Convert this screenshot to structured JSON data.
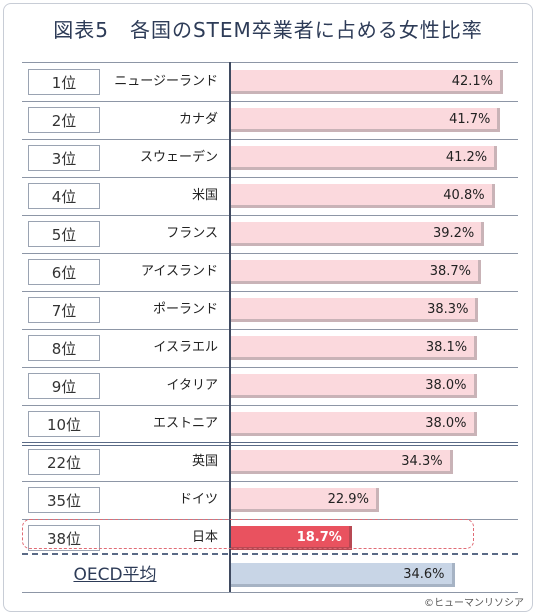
{
  "title": "図表5　各国のSTEM卒業者に占める女性比率",
  "credit": "©ヒューマンリソシア",
  "oecd_label": "OECD平均",
  "chart_data": {
    "type": "bar",
    "orientation": "horizontal",
    "title": "図表5　各国のSTEM卒業者に占める女性比率",
    "unit": "%",
    "xlim": [
      0,
      45
    ],
    "rows": [
      {
        "rank": "1位",
        "country": "ニュージーランド",
        "value": 42.1,
        "label": "42.1%"
      },
      {
        "rank": "2位",
        "country": "カナダ",
        "value": 41.7,
        "label": "41.7%"
      },
      {
        "rank": "3位",
        "country": "スウェーデン",
        "value": 41.2,
        "label": "41.2%"
      },
      {
        "rank": "4位",
        "country": "米国",
        "value": 40.8,
        "label": "40.8%"
      },
      {
        "rank": "5位",
        "country": "フランス",
        "value": 39.2,
        "label": "39.2%"
      },
      {
        "rank": "6位",
        "country": "アイスランド",
        "value": 38.7,
        "label": "38.7%"
      },
      {
        "rank": "7位",
        "country": "ポーランド",
        "value": 38.3,
        "label": "38.3%"
      },
      {
        "rank": "8位",
        "country": "イスラエル",
        "value": 38.1,
        "label": "38.1%"
      },
      {
        "rank": "9位",
        "country": "イタリア",
        "value": 38.0,
        "label": "38.0%"
      },
      {
        "rank": "10位",
        "country": "エストニア",
        "value": 38.0,
        "label": "38.0%"
      },
      {
        "rank": "22位",
        "country": "英国",
        "value": 34.3,
        "label": "34.3%"
      },
      {
        "rank": "35位",
        "country": "ドイツ",
        "value": 22.9,
        "label": "22.9%"
      },
      {
        "rank": "38位",
        "country": "日本",
        "value": 18.7,
        "label": "18.7%",
        "highlight": true
      }
    ],
    "average": {
      "label": "OECD平均",
      "value": 34.6,
      "display": "34.6%"
    },
    "colors": {
      "bar": "#fbd9dd",
      "highlight": "#e9525f",
      "average": "#c8d5e6"
    }
  }
}
